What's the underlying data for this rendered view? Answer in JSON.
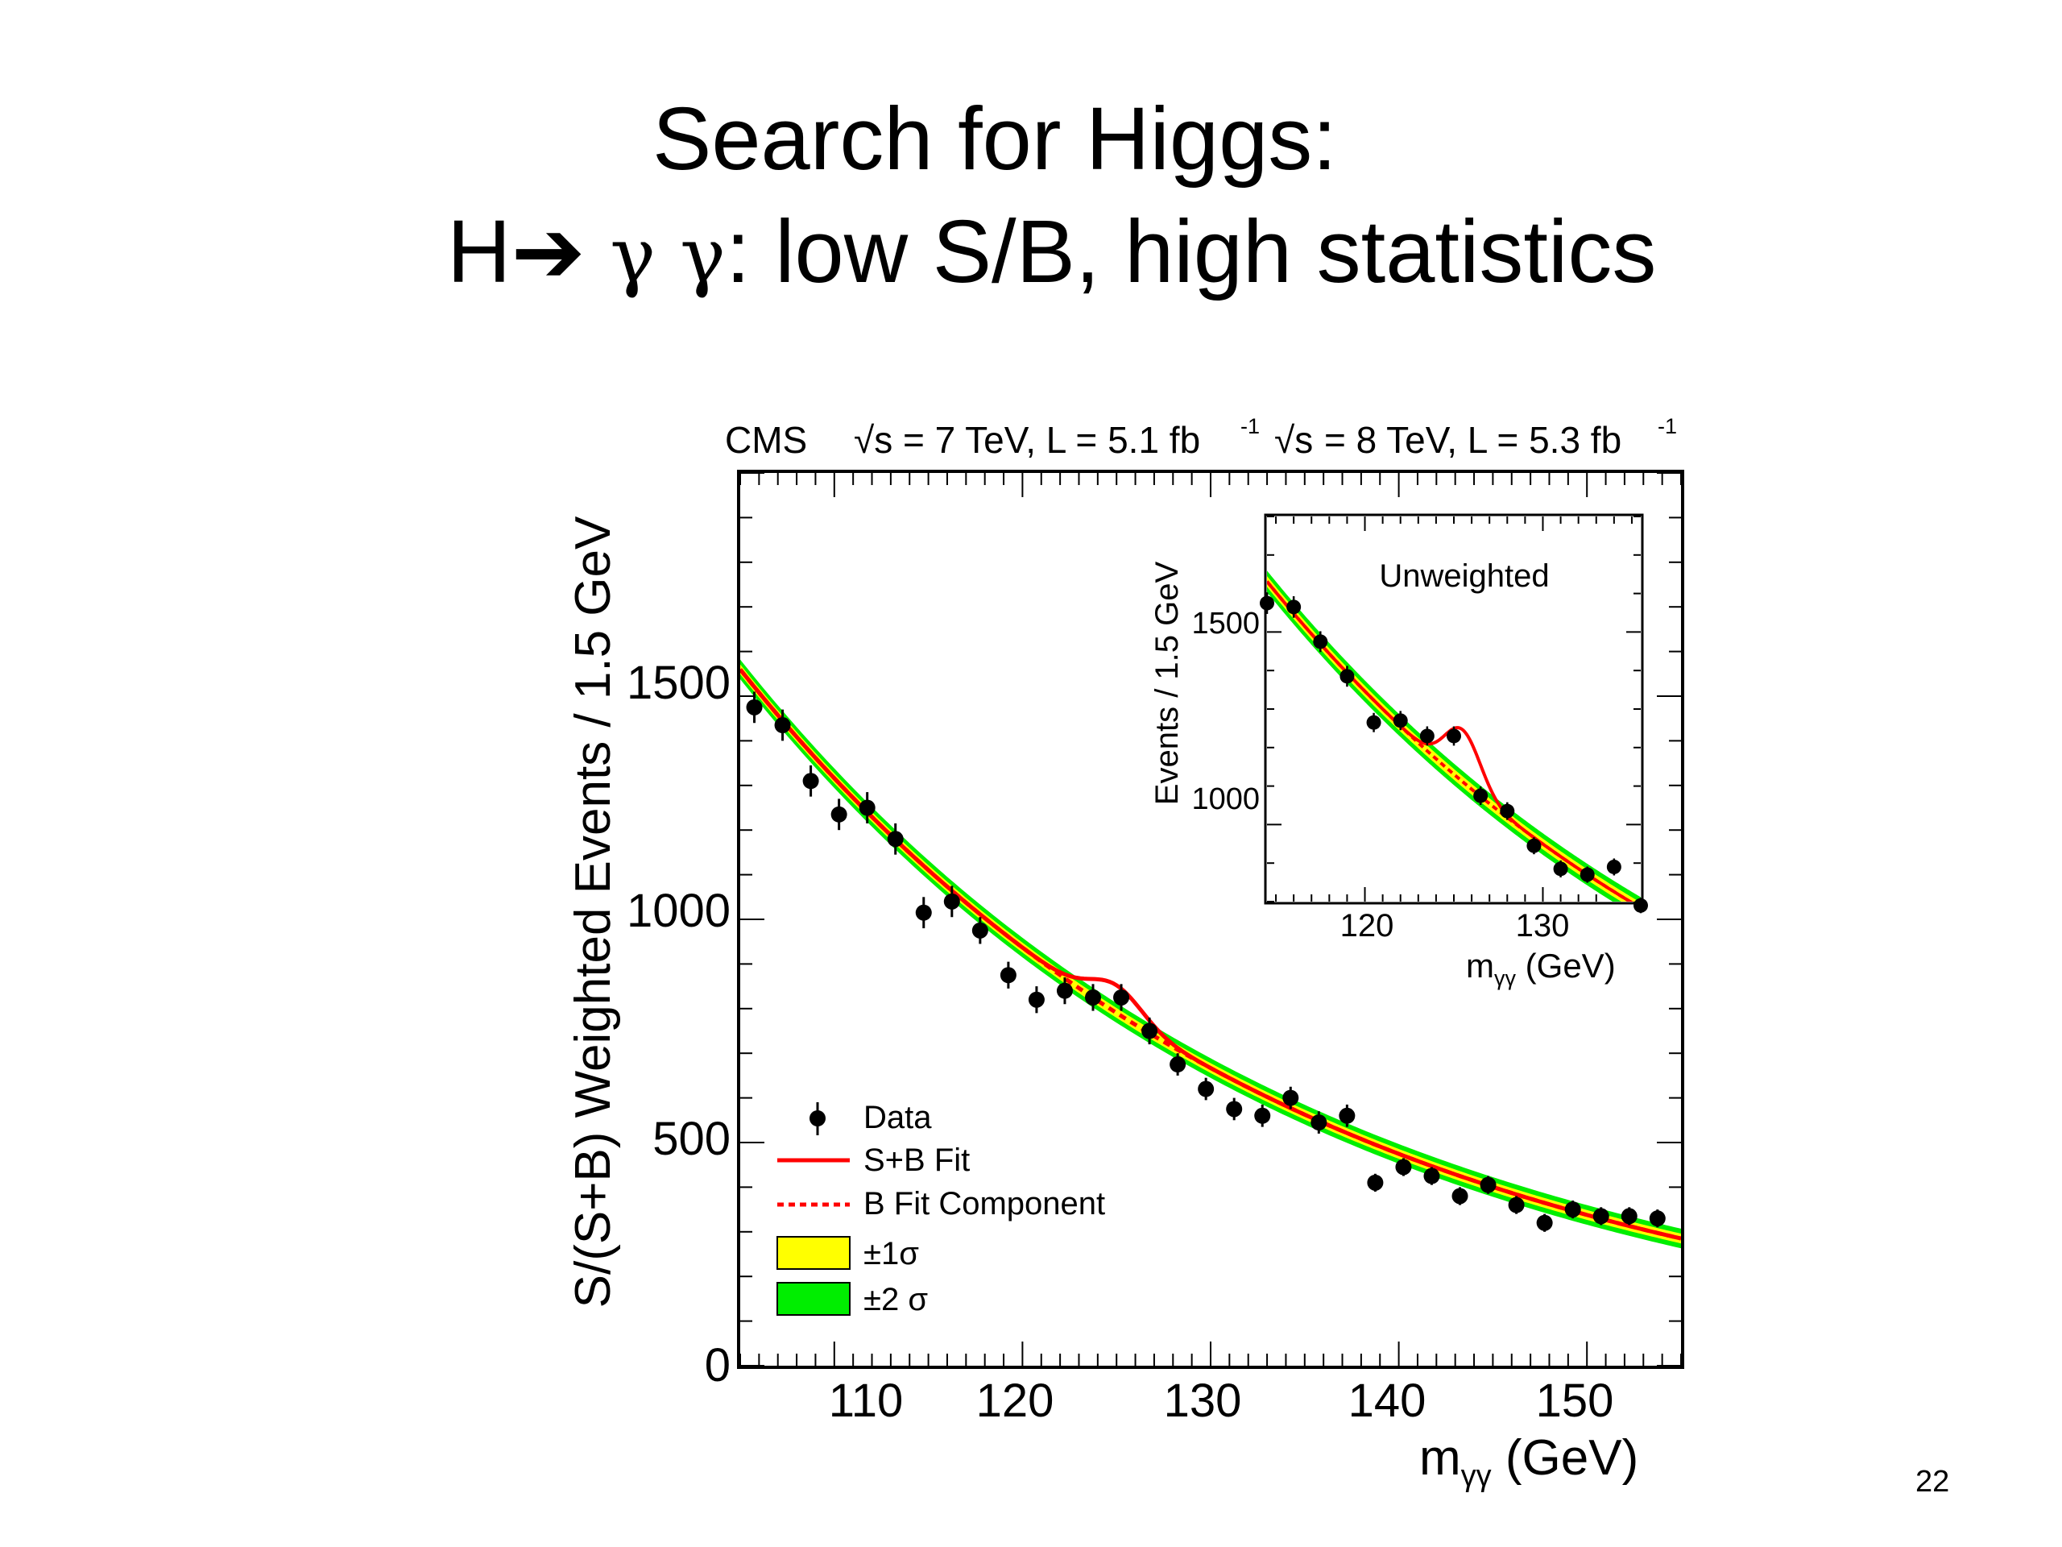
{
  "slide": {
    "title_line1": "Search for Higgs:",
    "title_line2_pre": "H",
    "title_line2_gamma": "γ γ",
    "title_line2_post": ": low S/B, high statistics",
    "page_number": "22"
  },
  "colors": {
    "fit": "#ff0000",
    "band_1sigma": "#ffff00",
    "band_2sigma": "#00ee00",
    "data": "#000000"
  },
  "chart_data": [
    {
      "type": "scatter",
      "header": {
        "experiment": "CMS",
        "energy_7": "= 7 TeV, L = 5.1 fb",
        "energy_8": "= 8 TeV, L = 5.3 fb",
        "exp": "-1"
      },
      "xlabel": "m",
      "xlabel_sub": "γγ",
      "xlabel_unit": " (GeV)",
      "ylabel": "S/(S+B) Weighted Events / 1.5 GeV",
      "xlim": [
        105,
        155
      ],
      "ylim": [
        0,
        2000
      ],
      "x_ticks": [
        110,
        120,
        130,
        140,
        150
      ],
      "y_ticks": [
        0,
        500,
        1000,
        1500
      ],
      "legend": {
        "position": "lower-left",
        "entries": [
          "Data",
          "S+B Fit",
          "B Fit Component",
          "±1σ",
          "±2 σ"
        ]
      },
      "series": [
        {
          "name": "Data",
          "x": [
            105.75,
            107.25,
            108.75,
            110.25,
            111.75,
            113.25,
            114.75,
            116.25,
            117.75,
            119.25,
            120.75,
            122.25,
            123.75,
            125.25,
            126.75,
            128.25,
            129.75,
            131.25,
            132.75,
            134.25,
            135.75,
            137.25,
            138.75,
            140.25,
            141.75,
            143.25,
            144.75,
            146.25,
            147.75,
            149.25,
            150.75,
            152.25,
            153.75,
            155.25
          ],
          "y": [
            1475,
            1435,
            1310,
            1235,
            1250,
            1180,
            1015,
            1040,
            975,
            875,
            820,
            840,
            825,
            825,
            750,
            675,
            620,
            575,
            560,
            600,
            545,
            560,
            410,
            445,
            425,
            380,
            405,
            360,
            320,
            350,
            335,
            335,
            330,
            290
          ],
          "err": [
            35,
            35,
            35,
            35,
            35,
            35,
            35,
            35,
            30,
            30,
            30,
            30,
            30,
            30,
            30,
            25,
            25,
            25,
            25,
            25,
            25,
            25,
            20,
            20,
            20,
            20,
            20,
            20,
            20,
            20,
            20,
            20,
            20,
            20
          ]
        },
        {
          "name": "S+B Fit",
          "peak_mass": 125,
          "signal_amplitude": 62,
          "signal_width": 1.4
        },
        {
          "name": "B Fit Component",
          "at_105": 1560,
          "at_155": 285
        }
      ]
    },
    {
      "type": "scatter",
      "title": "Unweighted",
      "xlabel": "m",
      "xlabel_sub": "γγ",
      "xlabel_unit": " (GeV)",
      "ylabel": "Events / 1.5 GeV",
      "xlim": [
        114.5,
        135.5
      ],
      "ylim": [
        800,
        1800
      ],
      "x_ticks": [
        120,
        130
      ],
      "y_ticks": [
        1000,
        1500
      ],
      "series": [
        {
          "name": "Data",
          "x": [
            114.5,
            116.0,
            117.5,
            119.0,
            120.5,
            122.0,
            123.5,
            125.0,
            126.5,
            128.0,
            129.5,
            131.0,
            132.5,
            134.0,
            135.5
          ],
          "y": [
            1575,
            1565,
            1475,
            1385,
            1265,
            1270,
            1230,
            1230,
            1075,
            1035,
            945,
            885,
            870,
            890,
            790
          ],
          "err": [
            28,
            28,
            27,
            27,
            25,
            25,
            25,
            25,
            24,
            23,
            22,
            22,
            21,
            22,
            20
          ]
        },
        {
          "name": "S+B Fit",
          "peak_mass": 125.5,
          "signal_amplitude": 135,
          "signal_width": 1.0
        },
        {
          "name": "B Fit Component",
          "at_114": 1660,
          "at_136": 770
        }
      ]
    }
  ]
}
